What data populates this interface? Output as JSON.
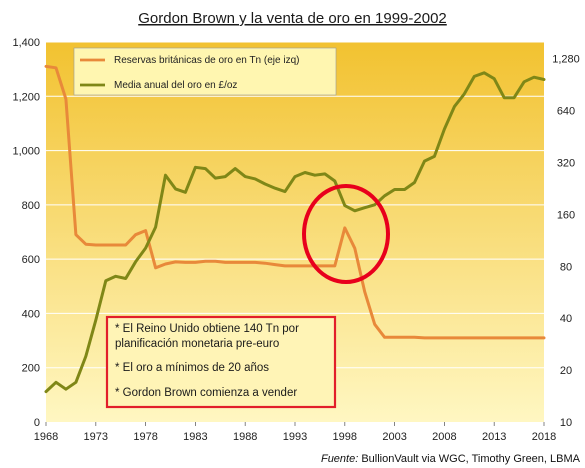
{
  "chart_data": {
    "type": "line",
    "title": "Gordon Brown y la venta  de oro en 1999-2002",
    "x": [
      1968,
      1969,
      1970,
      1971,
      1972,
      1973,
      1974,
      1975,
      1976,
      1977,
      1978,
      1979,
      1980,
      1981,
      1982,
      1983,
      1984,
      1985,
      1986,
      1987,
      1988,
      1989,
      1990,
      1991,
      1992,
      1993,
      1994,
      1995,
      1996,
      1997,
      1998,
      1999,
      2000,
      2001,
      2002,
      2003,
      2004,
      2005,
      2006,
      2007,
      2008,
      2009,
      2010,
      2011,
      2012,
      2013,
      2014,
      2015,
      2016,
      2017,
      2018
    ],
    "x_ticks": [
      "1968",
      "1973",
      "1978",
      "1983",
      "1988",
      "1993",
      "1998",
      "2003",
      "2008",
      "2013",
      "2018"
    ],
    "y_left": {
      "ticks": [
        "0",
        "200",
        "400",
        "600",
        "800",
        "1,000",
        "1,200",
        "1,400"
      ],
      "range": [
        0,
        1400
      ]
    },
    "y_right": {
      "ticks": [
        "10",
        "20",
        "40",
        "80",
        "160",
        "320",
        "640",
        "1,280"
      ],
      "range": [
        10,
        1600
      ],
      "scale": "log"
    },
    "series": [
      {
        "name": "Reservas británicas de oro en Tn (eje izq)",
        "color": "#E8893A",
        "axis": "left",
        "values": [
          1310,
          1305,
          1190,
          690,
          655,
          652,
          652,
          652,
          652,
          690,
          705,
          568,
          582,
          590,
          588,
          588,
          592,
          592,
          588,
          588,
          588,
          588,
          585,
          580,
          575,
          575,
          575,
          575,
          575,
          575,
          715,
          640,
          480,
          360,
          312,
          312,
          312,
          312,
          310,
          310,
          310,
          310,
          310,
          310,
          310,
          310,
          310,
          310,
          310,
          310,
          310
        ]
      },
      {
        "name": "Media anual del oro en £/oz",
        "color": "#7F8717",
        "axis": "right",
        "values": [
          15,
          17,
          15.5,
          17,
          24,
          39,
          66,
          70,
          68,
          85,
          102,
          135,
          270,
          225,
          215,
          300,
          295,
          260,
          265,
          295,
          265,
          257,
          240,
          227,
          217,
          265,
          280,
          270,
          275,
          250,
          180,
          168,
          175,
          182,
          205,
          223,
          223,
          245,
          326,
          347,
          500,
          675,
          800,
          1010,
          1060,
          980,
          760,
          760,
          940,
          1000,
          970
        ]
      }
    ],
    "annotation_lines": [
      "* El Reino Unido obtiene 140 Tn por",
      "planificación monetaria pre-euro",
      "* El oro a mínimos de 20 años",
      "* Gordon Brown comienza a vender"
    ],
    "source_label": "Fuente:",
    "source_text": " BullionVault via WGC, Timothy Green, LBMA",
    "colors": {
      "gradient_top": "#F2C230",
      "gradient_bottom": "#FFF7C2",
      "highlight_circle": "#E8001C",
      "note_border": "#E21E2A",
      "grid": "#FFFFFF"
    }
  }
}
